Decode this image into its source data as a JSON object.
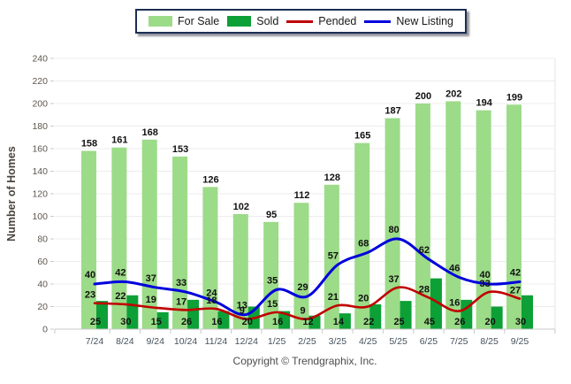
{
  "footer": {
    "copyright": "Copyright © Trendgraphix, Inc."
  },
  "chart_data": {
    "type": "bar+line",
    "title": "",
    "xlabel": "",
    "ylabel": "Number of Homes",
    "ylim": [
      0,
      240
    ],
    "ytick_step": 20,
    "grid": true,
    "legend_position": "top",
    "categories": [
      "7/24",
      "8/24",
      "9/24",
      "10/24",
      "11/24",
      "12/24",
      "1/25",
      "2/25",
      "3/25",
      "4/25",
      "5/25",
      "6/25",
      "7/25",
      "8/25",
      "9/25"
    ],
    "series": [
      {
        "name": "For Sale",
        "type": "bar",
        "color": "#9cdb88",
        "values": [
          158,
          161,
          168,
          153,
          126,
          102,
          95,
          112,
          128,
          165,
          187,
          200,
          202,
          194,
          199
        ]
      },
      {
        "name": "Sold",
        "type": "bar",
        "color": "#0ca036",
        "values": [
          25,
          30,
          15,
          26,
          16,
          20,
          16,
          12,
          14,
          22,
          25,
          45,
          26,
          20,
          30
        ]
      },
      {
        "name": "Pended",
        "type": "line",
        "color": "#c00000",
        "values": [
          23,
          22,
          19,
          17,
          18,
          9,
          15,
          9,
          21,
          20,
          37,
          28,
          16,
          33,
          27
        ]
      },
      {
        "name": "New Listing",
        "type": "line",
        "color": "#0000dd",
        "values": [
          40,
          42,
          37,
          33,
          24,
          13,
          35,
          29,
          57,
          68,
          80,
          62,
          46,
          40,
          42
        ]
      }
    ],
    "colors": {
      "gridline": "#ececec",
      "axis_line": "#c9c9c9",
      "y_tick_text": "#5d564e",
      "x_tick_text": "#44515c",
      "value_label": "#111111",
      "y_axis_title": "#4a443d"
    }
  }
}
